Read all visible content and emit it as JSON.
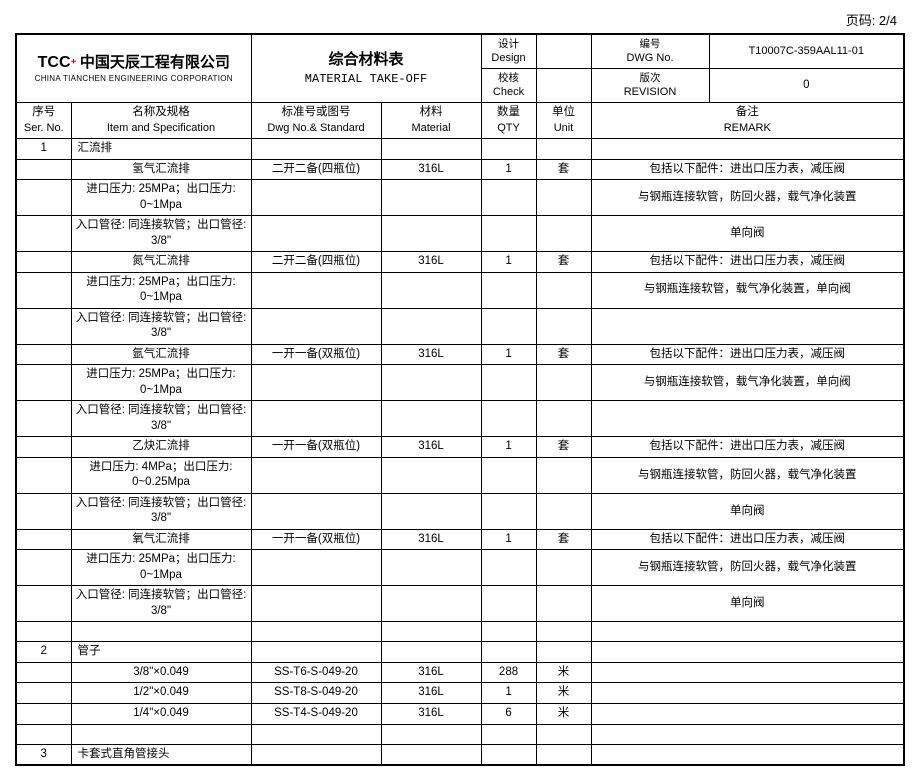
{
  "page_label": "页码: 2/4",
  "logo": {
    "brand_txt": "TCC",
    "company_cn": "中国天辰工程有限公司",
    "company_en": "CHINA TIANCHEN ENGINEERING CORPORATION"
  },
  "title": {
    "cn": "综合材料表",
    "en": "MATERIAL TAKE-OFF"
  },
  "meta": {
    "design_cn": "设计",
    "design_en": "Design",
    "design_val": "",
    "check_cn": "校核",
    "check_en": "Check",
    "check_val": "",
    "dwg_cn": "编号",
    "dwg_en": "DWG No.",
    "dwg_val": "T10007C-359AAL11-01",
    "rev_cn": "版次",
    "rev_en": "REVISION",
    "rev_val": "0"
  },
  "columns": {
    "ser_cn": "序号",
    "ser_en": "Ser. No.",
    "spec_cn": "名称及规格",
    "spec_en": "Item and Specification",
    "dwg_cn": "标准号或图号",
    "dwg_en": "Dwg No.& Standard",
    "mat_cn": "材料",
    "mat_en": "Material",
    "qty_cn": "数量",
    "qty_en": "QTY",
    "unit_cn": "单位",
    "unit_en": "Unit",
    "rem_cn": "备注",
    "rem_en": "REMARK"
  },
  "rows": [
    {
      "ser": "1",
      "spec": "汇流排",
      "dwg": "",
      "mat": "",
      "qty": "",
      "unit": "",
      "rem": "",
      "align": "l"
    },
    {
      "ser": "",
      "spec": "氢气汇流排",
      "dwg": "二开二备(四瓶位)",
      "mat": "316L",
      "qty": "1",
      "unit": "套",
      "rem": "包括以下配件：进出口压力表，减压阀"
    },
    {
      "ser": "",
      "spec": "进口压力: 25MPa；出口压力: 0~1Mpa",
      "dwg": "",
      "mat": "",
      "qty": "",
      "unit": "",
      "rem": "与钢瓶连接软管，防回火器，载气净化装置"
    },
    {
      "ser": "",
      "spec": "入口管径: 同连接软管；出口管径: 3/8\"",
      "dwg": "",
      "mat": "",
      "qty": "",
      "unit": "",
      "rem": "单向阀"
    },
    {
      "ser": "",
      "spec": "氮气汇流排",
      "dwg": "二开二备(四瓶位)",
      "mat": "316L",
      "qty": "1",
      "unit": "套",
      "rem": "包括以下配件：进出口压力表，减压阀"
    },
    {
      "ser": "",
      "spec": "进口压力: 25MPa；出口压力: 0~1Mpa",
      "dwg": "",
      "mat": "",
      "qty": "",
      "unit": "",
      "rem": "与钢瓶连接软管，载气净化装置，单向阀"
    },
    {
      "ser": "",
      "spec": "入口管径: 同连接软管；出口管径: 3/8\"",
      "dwg": "",
      "mat": "",
      "qty": "",
      "unit": "",
      "rem": ""
    },
    {
      "ser": "",
      "spec": "氩气汇流排",
      "dwg": "一开一备(双瓶位)",
      "mat": "316L",
      "qty": "1",
      "unit": "套",
      "rem": "包括以下配件：进出口压力表，减压阀"
    },
    {
      "ser": "",
      "spec": "进口压力: 25MPa；出口压力: 0~1Mpa",
      "dwg": "",
      "mat": "",
      "qty": "",
      "unit": "",
      "rem": "与钢瓶连接软管，载气净化装置，单向阀"
    },
    {
      "ser": "",
      "spec": "入口管径: 同连接软管；出口管径: 3/8\"",
      "dwg": "",
      "mat": "",
      "qty": "",
      "unit": "",
      "rem": ""
    },
    {
      "ser": "",
      "spec": "乙炔汇流排",
      "dwg": "一开一备(双瓶位)",
      "mat": "316L",
      "qty": "1",
      "unit": "套",
      "rem": "包括以下配件：进出口压力表，减压阀"
    },
    {
      "ser": "",
      "spec": "进口压力: 4MPa；出口压力: 0~0.25Mpa",
      "dwg": "",
      "mat": "",
      "qty": "",
      "unit": "",
      "rem": "与钢瓶连接软管，防回火器，载气净化装置"
    },
    {
      "ser": "",
      "spec": "入口管径: 同连接软管；出口管径: 3/8\"",
      "dwg": "",
      "mat": "",
      "qty": "",
      "unit": "",
      "rem": "单向阀"
    },
    {
      "ser": "",
      "spec": "氧气汇流排",
      "dwg": "一开一备(双瓶位)",
      "mat": "316L",
      "qty": "1",
      "unit": "套",
      "rem": "包括以下配件：进出口压力表，减压阀"
    },
    {
      "ser": "",
      "spec": "进口压力: 25MPa；出口压力: 0~1Mpa",
      "dwg": "",
      "mat": "",
      "qty": "",
      "unit": "",
      "rem": "与钢瓶连接软管，防回火器，载气净化装置"
    },
    {
      "ser": "",
      "spec": "入口管径: 同连接软管；出口管径: 3/8\"",
      "dwg": "",
      "mat": "",
      "qty": "",
      "unit": "",
      "rem": "单向阀"
    },
    {
      "ser": "",
      "spec": "",
      "dwg": "",
      "mat": "",
      "qty": "",
      "unit": "",
      "rem": ""
    },
    {
      "ser": "2",
      "spec": "管子",
      "dwg": "",
      "mat": "",
      "qty": "",
      "unit": "",
      "rem": "",
      "align": "l"
    },
    {
      "ser": "",
      "spec": "3/8\"×0.049",
      "dwg": "SS-T6-S-049-20",
      "mat": "316L",
      "qty": "288",
      "unit": "米",
      "rem": ""
    },
    {
      "ser": "",
      "spec": "1/2\"×0.049",
      "dwg": "SS-T8-S-049-20",
      "mat": "316L",
      "qty": "1",
      "unit": "米",
      "rem": ""
    },
    {
      "ser": "",
      "spec": "1/4\"×0.049",
      "dwg": "SS-T4-S-049-20",
      "mat": "316L",
      "qty": "6",
      "unit": "米",
      "rem": ""
    },
    {
      "ser": "",
      "spec": "",
      "dwg": "",
      "mat": "",
      "qty": "",
      "unit": "",
      "rem": ""
    },
    {
      "ser": "3",
      "spec": "卡套式直角管接头",
      "dwg": "",
      "mat": "",
      "qty": "",
      "unit": "",
      "rem": "",
      "align": "l"
    }
  ]
}
